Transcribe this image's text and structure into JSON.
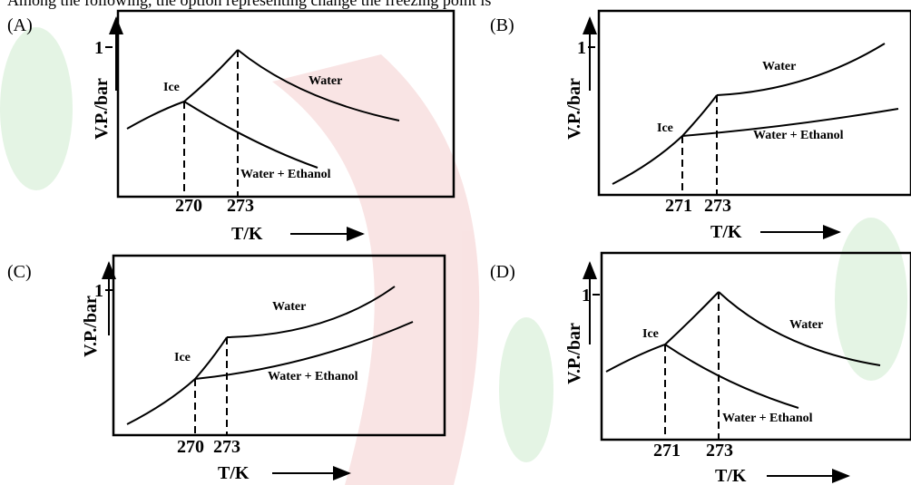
{
  "question": "Among the following, the option representing change the freezing point is",
  "options": [
    {
      "label": "(A)",
      "y_axis_label": "V.P./bar",
      "y_tick": "1",
      "x_ticks": [
        "270",
        "273"
      ],
      "x_axis_label": "T/K",
      "curve_labels": {
        "ice": "Ice",
        "water": "Water",
        "mixture": "Water + Ethanol"
      }
    },
    {
      "label": "(B)",
      "y_axis_label": "V.P./bar",
      "y_tick": "1",
      "x_ticks": [
        "271",
        "273"
      ],
      "x_axis_label": "T/K",
      "curve_labels": {
        "ice": "Ice",
        "water": "Water",
        "mixture": "Water + Ethanol"
      }
    },
    {
      "label": "(C)",
      "y_axis_label": "V.P./bar",
      "y_tick": "1",
      "x_ticks": [
        "270",
        "273"
      ],
      "x_axis_label": "T/K",
      "curve_labels": {
        "ice": "Ice",
        "water": "Water",
        "mixture": "Water + Ethanol"
      }
    },
    {
      "label": "(D)",
      "y_axis_label": "V.P./bar",
      "y_tick": "1",
      "x_ticks": [
        "271",
        "273"
      ],
      "x_axis_label": "T/K",
      "curve_labels": {
        "ice": "Ice",
        "water": "Water",
        "mixture": "Water + Ethanol"
      }
    }
  ]
}
